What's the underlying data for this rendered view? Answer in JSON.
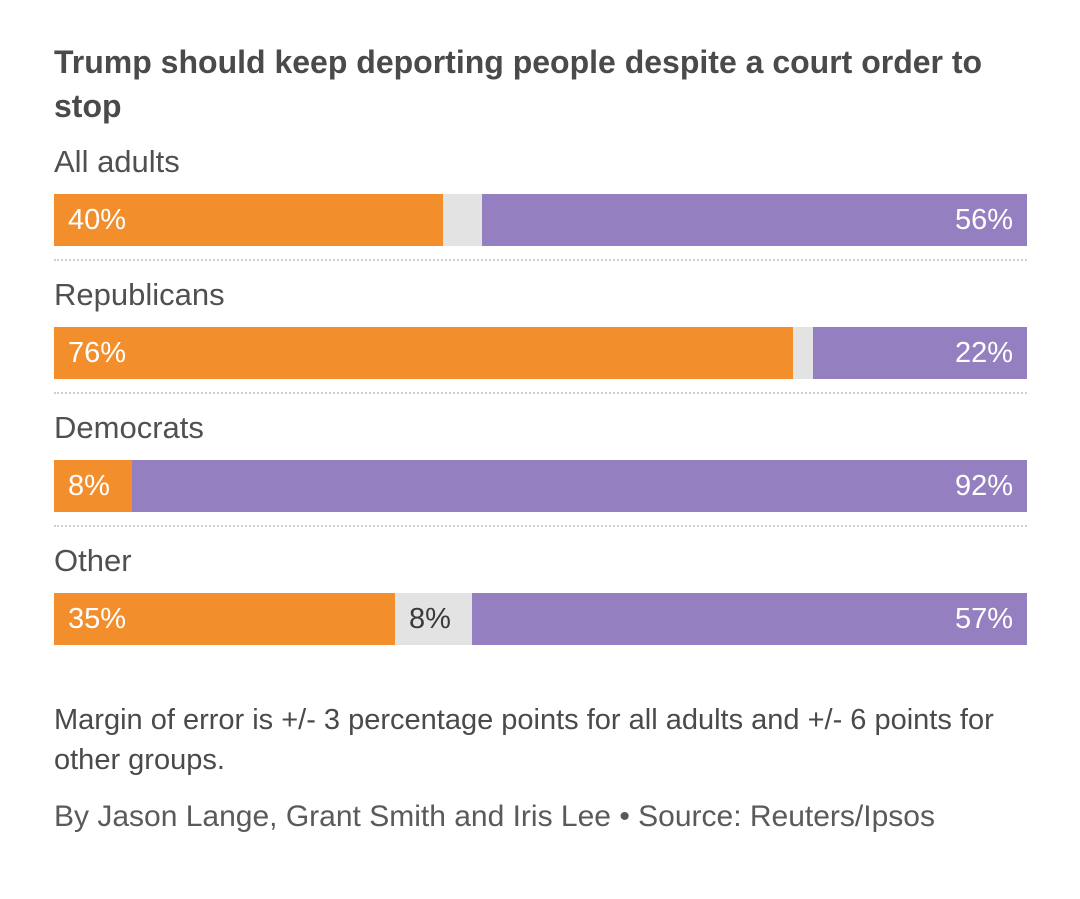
{
  "chart_data": {
    "type": "bar",
    "stacked": true,
    "orientation": "horizontal",
    "title": "Trump should keep deporting people despite a court order to stop",
    "categories": [
      "All adults",
      "Republicans",
      "Democrats",
      "Other"
    ],
    "series": [
      {
        "values": [
          40,
          76,
          8,
          35
        ],
        "color": "#f28e2b"
      },
      {
        "values": [
          4,
          2,
          0,
          8
        ],
        "color": "#e3e3e3"
      },
      {
        "values": [
          56,
          22,
          92,
          57
        ],
        "color": "#9480c1"
      }
    ],
    "value_labels": [
      [
        "40%",
        "",
        "56%"
      ],
      [
        "76%",
        "",
        "22%"
      ],
      [
        "8%",
        "",
        "92%"
      ],
      [
        "35%",
        "8%",
        "57%"
      ]
    ],
    "xlim": [
      0,
      100
    ],
    "grid": false,
    "legend": "none"
  },
  "note": "Margin of error is +/- 3 percentage points for all adults and +/- 6 points for other groups.",
  "byline": "By Jason Lange, Grant Smith and Iris Lee • Source: Reuters/Ipsos"
}
